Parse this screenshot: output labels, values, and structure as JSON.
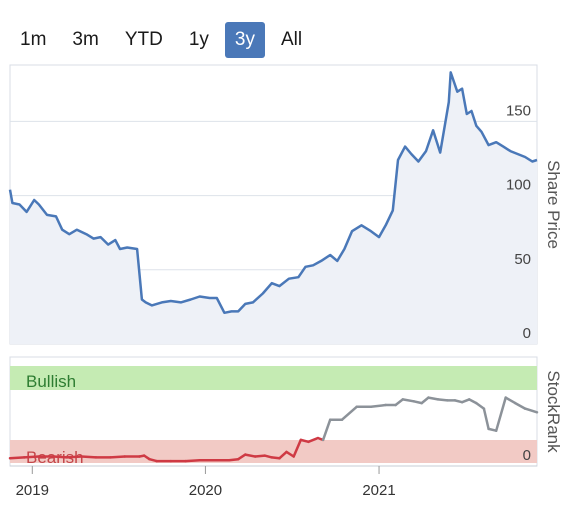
{
  "range_selector": {
    "buttons": [
      "1m",
      "3m",
      "YTD",
      "1y",
      "3y",
      "All"
    ],
    "active_index": 4
  },
  "chart_data": [
    {
      "type": "area",
      "ylabel": "Share Price",
      "ylim": [
        0,
        188
      ],
      "yticks": [
        0,
        50,
        100,
        150
      ],
      "xlim": [
        "2018-11-15",
        "2021-11-30"
      ],
      "grid": true,
      "color": "#4a78b8",
      "fill": "#eef1f7",
      "series": [
        {
          "x": [
            "2018-11-15",
            "2018-11-20",
            "2018-12-05",
            "2018-12-20",
            "2019-01-05",
            "2019-01-15",
            "2019-02-01",
            "2019-02-20",
            "2019-03-05",
            "2019-03-20",
            "2019-04-05",
            "2019-04-25",
            "2019-05-10",
            "2019-05-25",
            "2019-06-10",
            "2019-06-25",
            "2019-07-05",
            "2019-07-20",
            "2019-08-10",
            "2019-08-20",
            "2019-08-28",
            "2019-09-10",
            "2019-10-01",
            "2019-10-20",
            "2019-11-10",
            "2019-12-01",
            "2019-12-20",
            "2020-01-10",
            "2020-01-25",
            "2020-02-10",
            "2020-02-25",
            "2020-03-10",
            "2020-03-25",
            "2020-04-10",
            "2020-05-01",
            "2020-05-20",
            "2020-06-05",
            "2020-06-25",
            "2020-07-15",
            "2020-07-30",
            "2020-08-15",
            "2020-09-01",
            "2020-09-20",
            "2020-10-05",
            "2020-10-20",
            "2020-11-05",
            "2020-11-25",
            "2020-12-15",
            "2021-01-01",
            "2021-01-15",
            "2021-01-30",
            "2021-02-10",
            "2021-02-25",
            "2021-03-10",
            "2021-03-25",
            "2021-04-10",
            "2021-04-25",
            "2021-05-10",
            "2021-05-20",
            "2021-05-28",
            "2021-06-01",
            "2021-06-15",
            "2021-06-25",
            "2021-07-05",
            "2021-07-15",
            "2021-07-25",
            "2021-08-05",
            "2021-08-20",
            "2021-09-05",
            "2021-09-20",
            "2021-10-05",
            "2021-10-20",
            "2021-11-05",
            "2021-11-20",
            "2021-11-30"
          ],
          "values": [
            104,
            95,
            94,
            89,
            97,
            94,
            87,
            86,
            77,
            74,
            77,
            74,
            71,
            72,
            67,
            70,
            64,
            65,
            64,
            30,
            28,
            26,
            28,
            29,
            28,
            30,
            32,
            31,
            31,
            21,
            22,
            22,
            27,
            28,
            34,
            41,
            39,
            44,
            45,
            52,
            53,
            56,
            60,
            56,
            64,
            76,
            80,
            76,
            72,
            80,
            90,
            124,
            133,
            128,
            123,
            130,
            144,
            129,
            148,
            163,
            183,
            170,
            172,
            155,
            157,
            147,
            143,
            134,
            136,
            133,
            130,
            128,
            126,
            123,
            124
          ]
        }
      ]
    },
    {
      "type": "line",
      "ylabel": "StockRank",
      "ytick": "0",
      "bands": [
        {
          "label": "Bullish",
          "fill": "#c5ebb3",
          "text_color": "#2e7d32"
        },
        {
          "label": "Bearish",
          "fill": "#f2cac5",
          "text_color": "#c4474a"
        }
      ],
      "ylim": [
        0,
        100
      ],
      "xticks": [
        "2019",
        "2020",
        "2021"
      ],
      "threshold": 30,
      "series": [
        {
          "x": [
            "2018-11-15",
            "2018-12-15",
            "2019-01-15",
            "2019-02-15",
            "2019-03-15",
            "2019-04-15",
            "2019-05-15",
            "2019-06-15",
            "2019-07-15",
            "2019-08-15",
            "2019-08-25",
            "2019-09-05",
            "2019-09-20",
            "2019-10-20",
            "2019-11-20",
            "2019-12-20",
            "2020-01-20",
            "2020-02-20",
            "2020-03-10",
            "2020-03-25",
            "2020-04-15",
            "2020-05-05",
            "2020-05-20",
            "2020-06-05",
            "2020-06-20",
            "2020-07-05",
            "2020-07-20",
            "2020-08-05",
            "2020-08-25",
            "2020-09-05",
            "2020-09-20",
            "2020-10-15",
            "2020-11-15",
            "2020-12-15",
            "2021-01-15",
            "2021-02-05",
            "2021-02-20",
            "2021-03-15",
            "2021-04-01",
            "2021-04-15",
            "2021-05-05",
            "2021-05-25",
            "2021-06-10",
            "2021-06-25",
            "2021-07-10",
            "2021-07-25",
            "2021-08-10",
            "2021-08-20",
            "2021-09-05",
            "2021-09-25",
            "2021-10-15",
            "2021-11-05",
            "2021-11-30"
          ],
          "values": [
            4,
            5,
            6,
            6,
            5,
            6,
            5,
            5,
            6,
            6,
            7,
            3,
            1,
            1,
            1,
            2,
            2,
            2,
            3,
            8,
            6,
            7,
            5,
            4,
            11,
            6,
            24,
            22,
            26,
            24,
            46,
            46,
            60,
            60,
            62,
            62,
            68,
            66,
            64,
            70,
            68,
            67,
            67,
            65,
            68,
            64,
            58,
            36,
            34,
            70,
            64,
            58,
            54
          ]
        }
      ]
    }
  ]
}
